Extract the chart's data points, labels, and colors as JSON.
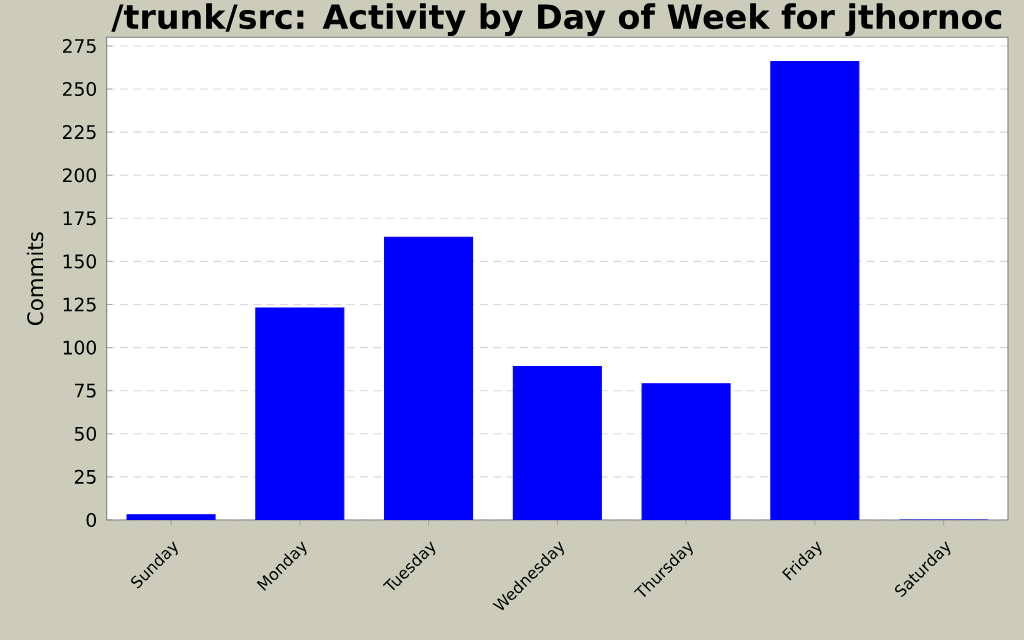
{
  "chart_data": {
    "type": "bar",
    "title": "/trunk/src: Activity by Day of Week for jthornoc",
    "ylabel": "Commits",
    "categories": [
      "Sunday",
      "Monday",
      "Tuesday",
      "Wednesday",
      "Thursday",
      "Friday",
      "Saturday"
    ],
    "values": [
      3,
      123,
      164,
      89,
      79,
      266,
      0
    ],
    "color": "#0000ff",
    "ylim": [
      0,
      280
    ],
    "yticks": [
      0,
      25,
      50,
      75,
      100,
      125,
      150,
      175,
      200,
      225,
      250,
      275
    ],
    "grid": "y"
  }
}
